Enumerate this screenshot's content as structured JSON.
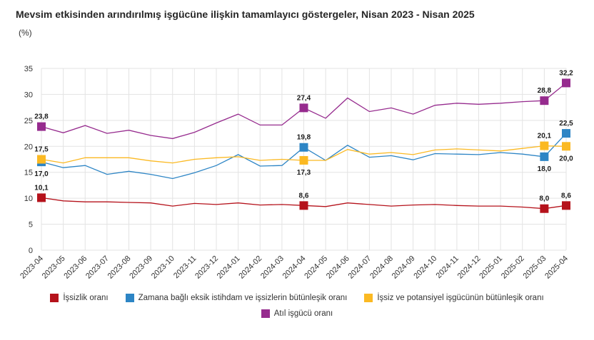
{
  "title": "Mevsim etkisinden arındırılmış işgücüne ilişkin tamamlayıcı göstergeler, Nisan 2023 - Nisan 2025",
  "unit": "(%)",
  "chart_data": {
    "type": "line",
    "title": "Mevsim etkisinden arındırılmış işgücüne ilişkin tamamlayıcı göstergeler, Nisan 2023 - Nisan 2025",
    "ylabel": "(%)",
    "ylim": [
      0,
      35
    ],
    "yticks": [
      0,
      5,
      10,
      15,
      20,
      25,
      30,
      35
    ],
    "grid": true,
    "legend_position": "bottom",
    "categories": [
      "2023-04",
      "2023-05",
      "2023-06",
      "2023-07",
      "2023-08",
      "2023-09",
      "2023-10",
      "2023-11",
      "2023-12",
      "2024-01",
      "2024-02",
      "2024-03",
      "2024-04",
      "2024-05",
      "2024-06",
      "2024-07",
      "2024-08",
      "2024-09",
      "2024-10",
      "2024-11",
      "2024-12",
      "2025-01",
      "2025-02",
      "2025-03",
      "2025-04"
    ],
    "series": [
      {
        "name": "İşsizlik oranı",
        "color": "#b5121b",
        "values": [
          10.1,
          9.5,
          9.3,
          9.3,
          9.2,
          9.1,
          8.5,
          9.0,
          8.8,
          9.1,
          8.7,
          8.8,
          8.6,
          8.4,
          9.1,
          8.8,
          8.5,
          8.7,
          8.8,
          8.6,
          8.5,
          8.5,
          8.3,
          8.0,
          8.6
        ],
        "labels": [
          {
            "index": 0,
            "text": "10,1",
            "pos": "above"
          },
          {
            "index": 12,
            "text": "8,6",
            "pos": "above"
          },
          {
            "index": 23,
            "text": "8,0",
            "pos": "above"
          },
          {
            "index": 24,
            "text": "8,6",
            "pos": "above"
          }
        ]
      },
      {
        "name": "Zamana bağlı eksik istihdam ve işsizlerin bütünleşik oranı",
        "color": "#2d85c5",
        "values": [
          17.0,
          15.9,
          16.3,
          14.6,
          15.2,
          14.6,
          13.8,
          14.9,
          16.3,
          18.4,
          16.2,
          16.3,
          19.8,
          17.3,
          20.2,
          17.9,
          18.2,
          17.4,
          18.6,
          18.5,
          18.4,
          18.8,
          18.5,
          18.0,
          22.5
        ],
        "labels": [
          {
            "index": 0,
            "text": "17,0",
            "pos": "below"
          },
          {
            "index": 12,
            "text": "19,8",
            "pos": "above"
          },
          {
            "index": 23,
            "text": "18,0",
            "pos": "below"
          },
          {
            "index": 24,
            "text": "22,5",
            "pos": "above"
          }
        ]
      },
      {
        "name": "İşsiz ve potansiyel işgücünün bütünleşik oranı",
        "color": "#fbb922",
        "values": [
          17.5,
          16.8,
          17.8,
          17.8,
          17.8,
          17.2,
          16.8,
          17.5,
          17.8,
          18.0,
          17.3,
          17.5,
          17.3,
          17.3,
          19.4,
          18.5,
          18.8,
          18.4,
          19.3,
          19.5,
          19.3,
          19.1,
          19.6,
          20.1,
          20.0
        ],
        "labels": [
          {
            "index": 0,
            "text": "17,5",
            "pos": "above"
          },
          {
            "index": 12,
            "text": "17,3",
            "pos": "below"
          },
          {
            "index": 23,
            "text": "20,1",
            "pos": "above"
          },
          {
            "index": 24,
            "text": "20,0",
            "pos": "below"
          }
        ]
      },
      {
        "name": "Atıl işgücü oranı",
        "color": "#962b8e",
        "values": [
          23.8,
          22.6,
          24.0,
          22.5,
          23.1,
          22.1,
          21.5,
          22.7,
          24.5,
          26.2,
          24.1,
          24.1,
          27.4,
          25.4,
          29.3,
          26.7,
          27.4,
          26.2,
          27.9,
          28.3,
          28.1,
          28.3,
          28.6,
          28.8,
          32.2
        ],
        "labels": [
          {
            "index": 0,
            "text": "23,8",
            "pos": "above"
          },
          {
            "index": 12,
            "text": "27,4",
            "pos": "above"
          },
          {
            "index": 23,
            "text": "28,8",
            "pos": "above"
          },
          {
            "index": 24,
            "text": "32,2",
            "pos": "above"
          }
        ]
      }
    ]
  }
}
